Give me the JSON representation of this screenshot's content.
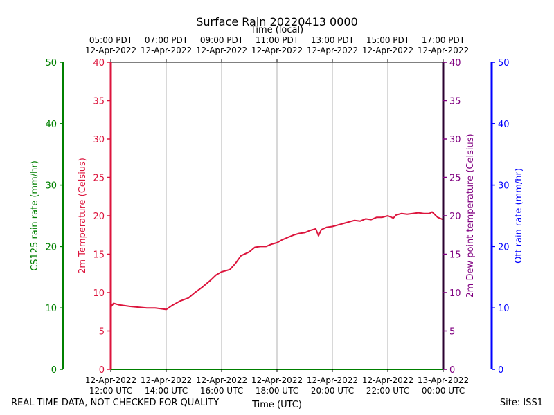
{
  "chart_data": {
    "type": "line",
    "title": "Surface Rain 20220413 0000",
    "xlabel": "Time (UTC)",
    "top_xlabel": "Time (local)",
    "bottom_ticks": [
      [
        "12-Apr-2022",
        "12:00 UTC"
      ],
      [
        "12-Apr-2022",
        "14:00 UTC"
      ],
      [
        "12-Apr-2022",
        "16:00 UTC"
      ],
      [
        "12-Apr-2022",
        "18:00 UTC"
      ],
      [
        "12-Apr-2022",
        "20:00 UTC"
      ],
      [
        "12-Apr-2022",
        "22:00 UTC"
      ],
      [
        "13-Apr-2022",
        "00:00 UTC"
      ]
    ],
    "top_ticks": [
      [
        "05:00 PDT",
        "12-Apr-2022"
      ],
      [
        "07:00 PDT",
        "12-Apr-2022"
      ],
      [
        "09:00 PDT",
        "12-Apr-2022"
      ],
      [
        "11:00 PDT",
        "12-Apr-2022"
      ],
      [
        "13:00 PDT",
        "12-Apr-2022"
      ],
      [
        "15:00 PDT",
        "12-Apr-2022"
      ],
      [
        "17:00 PDT",
        "12-Apr-2022"
      ]
    ],
    "axes": {
      "cs125": {
        "label": "CS125 rain rate (mm/hr)",
        "ylim": [
          0,
          50
        ],
        "ticks": [
          0,
          10,
          20,
          30,
          40,
          50
        ],
        "color": "#008000"
      },
      "temp": {
        "label": "2m Temperature (Celsius)",
        "ylim": [
          0,
          40
        ],
        "ticks": [
          0,
          5,
          10,
          15,
          20,
          25,
          30,
          35,
          40
        ],
        "color": "#dc143c"
      },
      "dew": {
        "label": "2m Dew point temperature (Celsius)",
        "ylim": [
          0,
          40
        ],
        "ticks": [
          0,
          5,
          10,
          15,
          20,
          25,
          30,
          35,
          40
        ],
        "color": "#800080"
      },
      "ott": {
        "label": "Ott rain rate (mm/hr)",
        "ylim": [
          0,
          50
        ],
        "ticks": [
          0,
          10,
          20,
          30,
          40,
          50
        ],
        "color": "#0000ff"
      }
    },
    "xlim_hours": [
      0,
      12
    ],
    "grid": true,
    "series": [
      {
        "axis": "temp",
        "color": "#dc143c",
        "x": [
          0,
          0.1,
          0.3,
          0.5,
          0.7,
          1.0,
          1.3,
          1.6,
          1.8,
          2.0,
          2.2,
          2.5,
          2.8,
          3.0,
          3.3,
          3.6,
          3.8,
          4.0,
          4.3,
          4.5,
          4.7,
          5.0,
          5.2,
          5.4,
          5.6,
          5.8,
          6.0,
          6.2,
          6.4,
          6.6,
          6.8,
          7.0,
          7.2,
          7.4,
          7.5,
          7.6,
          7.8,
          8.0,
          8.2,
          8.4,
          8.6,
          8.8,
          9.0,
          9.2,
          9.4,
          9.6,
          9.8,
          10.0,
          10.2,
          10.3,
          10.5,
          10.7,
          10.9,
          11.1,
          11.3,
          11.5,
          11.6,
          11.8,
          12.0
        ],
        "y": [
          8.1,
          8.6,
          8.4,
          8.3,
          8.2,
          8.1,
          8.0,
          8.0,
          7.9,
          7.8,
          8.3,
          8.9,
          9.3,
          9.9,
          10.7,
          11.6,
          12.3,
          12.7,
          13.0,
          13.8,
          14.8,
          15.3,
          15.9,
          16.0,
          16.0,
          16.3,
          16.5,
          16.9,
          17.2,
          17.5,
          17.7,
          17.8,
          18.1,
          18.3,
          17.4,
          18.2,
          18.5,
          18.6,
          18.8,
          19.0,
          19.2,
          19.4,
          19.3,
          19.6,
          19.5,
          19.8,
          19.8,
          20.0,
          19.7,
          20.1,
          20.3,
          20.2,
          20.3,
          20.4,
          20.3,
          20.3,
          20.5,
          19.8,
          19.5
        ]
      }
    ]
  },
  "footer": {
    "left": "REAL TIME DATA, NOT CHECKED FOR QUALITY",
    "right": "Site: ISS1"
  }
}
